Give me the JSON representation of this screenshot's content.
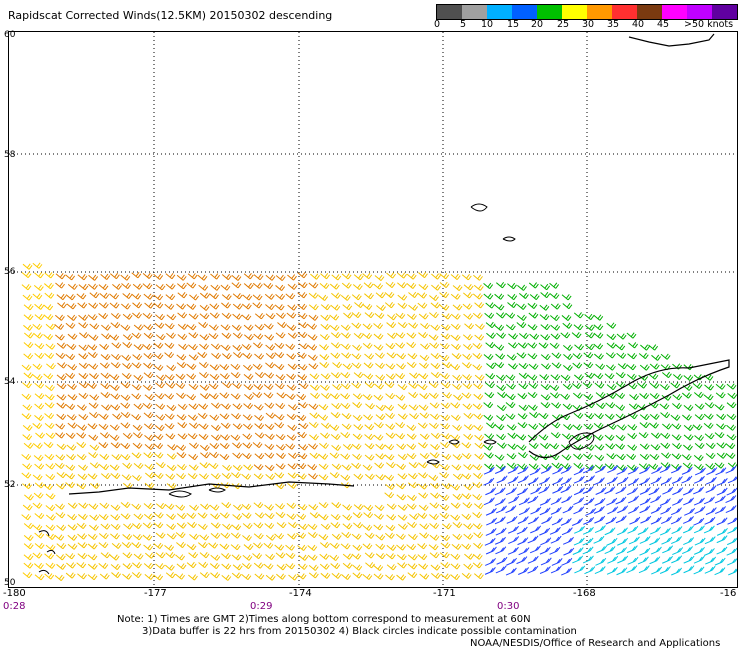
{
  "title": "Rapidscat Corrected Winds(12.5KM) 20150302 descending",
  "colorbar": {
    "colors": [
      "#505050",
      "#a0a0a0",
      "#00b0ff",
      "#0060ff",
      "#00c000",
      "#ffff00",
      "#ff9900",
      "#ff3030",
      "#7a3a10",
      "#ff00ff",
      "#c000ff",
      "#6000a0"
    ],
    "labels": [
      "0",
      "5",
      "10",
      "15",
      "20",
      "25",
      "30",
      "35",
      "40",
      "45",
      ">50 knots"
    ]
  },
  "latitudes": [
    "60",
    "58",
    "56",
    "54",
    "52",
    "50"
  ],
  "longitudes": [
    "-180",
    "-177",
    "-174",
    "-171",
    "-168",
    "-16"
  ],
  "times": [
    "0:28",
    "0:29",
    "0:30"
  ],
  "notes": {
    "line1": "Note: 1) Times are GMT 2)Times along bottom correspond to measurement at 60N",
    "line2": "3)Data buffer is 22 hrs from 20150302 4) Black circles indicate possible contamination"
  },
  "credit": "NOAA/NESDIS/Office of Research and Applications"
}
